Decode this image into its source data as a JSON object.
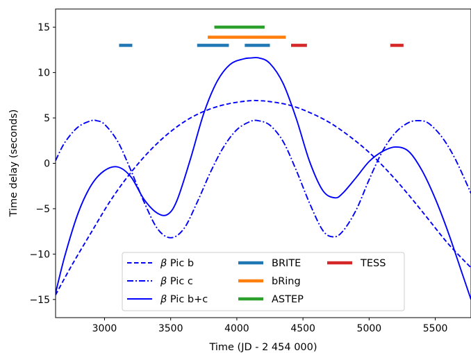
{
  "chart_data": {
    "type": "line",
    "title": "",
    "xlabel": "Time (JD - 2 454 000)",
    "ylabel": "Time delay (seconds)",
    "xlim": [
      2630,
      5770
    ],
    "ylim": [
      -17,
      17
    ],
    "xticks": [
      3000,
      3500,
      4000,
      4500,
      5000,
      5500
    ],
    "yticks": [
      -15,
      -10,
      -5,
      0,
      5,
      10,
      15
    ],
    "ytick_labels": [
      "−15",
      "−10",
      "−5",
      "0",
      "5",
      "10",
      "15"
    ],
    "grid": false,
    "legend_position": "lower center",
    "series": [
      {
        "name": "β Pic b",
        "greek": "β",
        "label": "Pic b",
        "style": "dashed",
        "color": "#0000ff",
        "x": [
          2630,
          2750,
          2900,
          3050,
          3200,
          3350,
          3500,
          3650,
          3800,
          3950,
          4100,
          4170,
          4250,
          4400,
          4550,
          4700,
          4850,
          5000,
          5150,
          5300,
          5450,
          5600,
          5770
        ],
        "y": [
          -14.5,
          -11.3,
          -7.6,
          -4.0,
          -1.0,
          1.5,
          3.5,
          5.0,
          6.0,
          6.6,
          6.9,
          6.9,
          6.8,
          6.4,
          5.6,
          4.5,
          3.0,
          1.2,
          -1.0,
          -3.5,
          -6.2,
          -8.9,
          -11.5
        ]
      },
      {
        "name": "β Pic c",
        "greek": "β",
        "label": "Pic c",
        "style": "dashdot",
        "color": "#0000ff",
        "x": [
          2630,
          2700,
          2800,
          2900,
          2940,
          3000,
          3100,
          3200,
          3300,
          3400,
          3500,
          3600,
          3700,
          3800,
          3900,
          4000,
          4100,
          4160,
          4250,
          4350,
          4450,
          4550,
          4650,
          4730,
          4800,
          4900,
          5000,
          5100,
          5200,
          5300,
          5380,
          5450,
          5550,
          5650,
          5770
        ],
        "y": [
          0.3,
          2.3,
          4.0,
          4.7,
          4.7,
          4.3,
          2.4,
          -0.8,
          -4.3,
          -7.2,
          -8.2,
          -7.2,
          -4.3,
          -1.0,
          1.8,
          3.7,
          4.6,
          4.7,
          4.2,
          2.4,
          -0.8,
          -4.4,
          -7.4,
          -8.1,
          -7.5,
          -5.2,
          -1.8,
          1.3,
          3.4,
          4.5,
          4.7,
          4.4,
          2.9,
          0.5,
          -3.3
        ]
      },
      {
        "name": "β Pic b+c",
        "greek": "β",
        "label": "Pic b+c",
        "style": "solid",
        "color": "#0000ff",
        "x": [
          2630,
          2700,
          2800,
          2900,
          3000,
          3100,
          3200,
          3300,
          3400,
          3480,
          3550,
          3650,
          3750,
          3850,
          3950,
          4050,
          4100,
          4170,
          4250,
          4350,
          4450,
          4550,
          4650,
          4740,
          4800,
          4900,
          5000,
          5100,
          5200,
          5300,
          5400,
          5500,
          5600,
          5700,
          5770
        ],
        "y": [
          -14.3,
          -10.2,
          -5.5,
          -2.4,
          -0.8,
          -0.4,
          -1.5,
          -4.0,
          -5.5,
          -5.6,
          -4.0,
          0.5,
          5.5,
          9.0,
          10.9,
          11.5,
          11.6,
          11.6,
          11.0,
          8.8,
          4.9,
          0.2,
          -3.0,
          -3.8,
          -3.3,
          -1.6,
          0.2,
          1.3,
          1.8,
          1.3,
          -0.8,
          -3.9,
          -7.7,
          -12.0,
          -15.0
        ]
      }
    ],
    "observations": [
      {
        "name": "BRITE",
        "color": "#1f77b4",
        "y": 13,
        "segments": [
          [
            3110,
            3210
          ],
          [
            3700,
            3940
          ],
          [
            4060,
            4250
          ]
        ]
      },
      {
        "name": "bRing",
        "color": "#ff7f0e",
        "y": 13.9,
        "segments": [
          [
            3780,
            4370
          ]
        ]
      },
      {
        "name": "ASTEP",
        "color": "#2ca02c",
        "y": 15,
        "segments": [
          [
            3830,
            4210
          ]
        ]
      },
      {
        "name": "TESS",
        "color": "#d62728",
        "y": 13,
        "segments": [
          [
            4410,
            4530
          ],
          [
            5160,
            5260
          ]
        ]
      }
    ]
  }
}
